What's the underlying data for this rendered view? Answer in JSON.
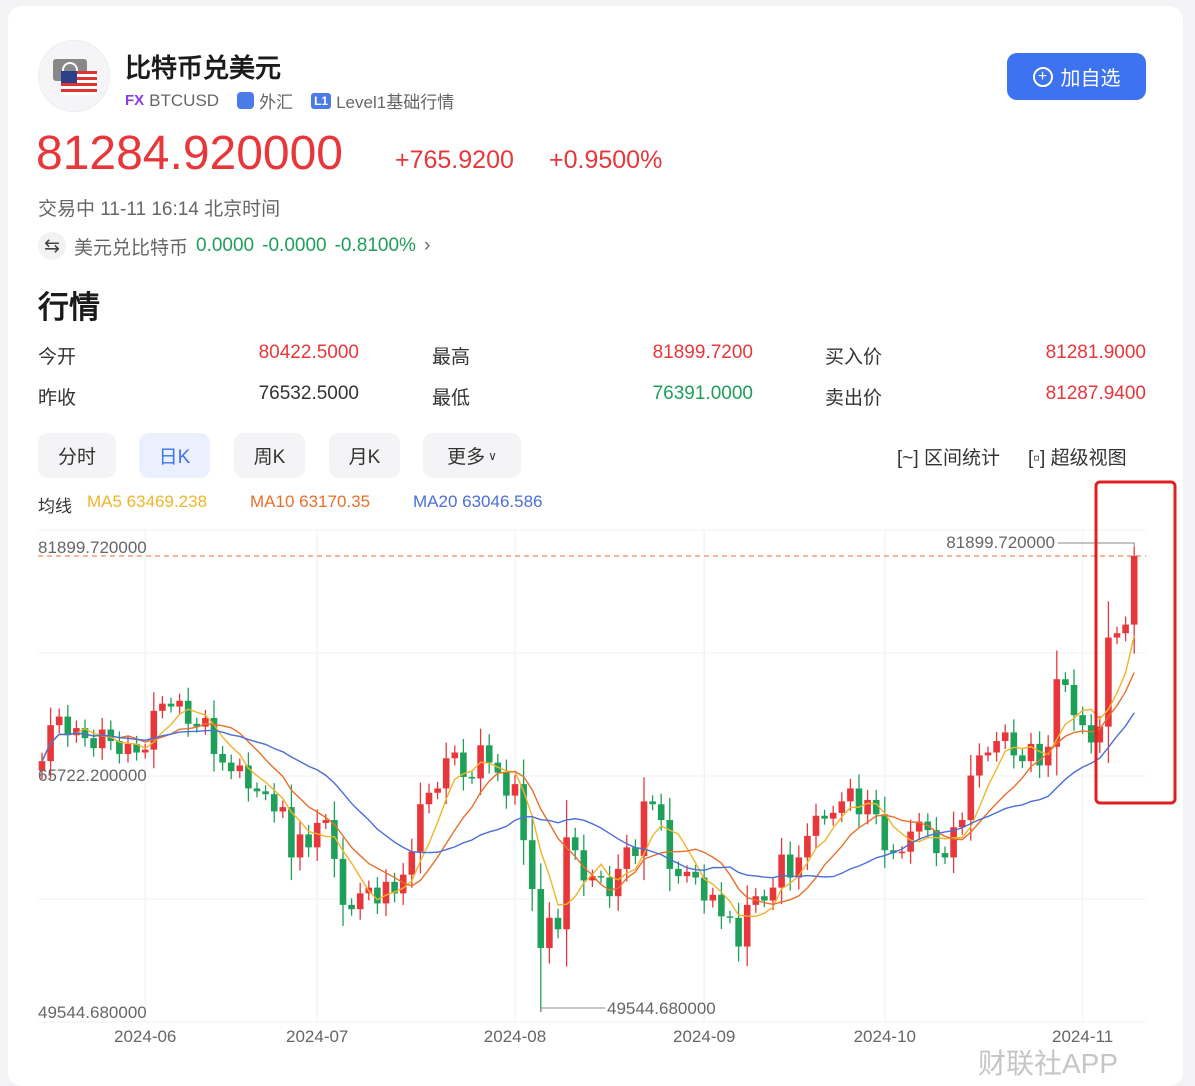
{
  "header": {
    "title": "比特币兑美元",
    "fx_badge": "FX",
    "symbol": "BTCUSD",
    "market": "外汇",
    "level_badge": "L1",
    "level": "Level1基础行情",
    "add_button": "加自选"
  },
  "quote": {
    "price": "81284.920000",
    "change": "+765.9200",
    "change_pct": "+0.9500%",
    "status": "交易中 11-11 16:14 北京时间",
    "reverse": {
      "label": "美元兑比特币",
      "price": "0.0000",
      "change": "-0.0000",
      "pct": "-0.8100%"
    }
  },
  "section_title": "行情",
  "stats": [
    {
      "label": "今开",
      "value": "80422.5000",
      "color": "#e8373a"
    },
    {
      "label": "最高",
      "value": "81899.7200",
      "color": "#e8373a"
    },
    {
      "label": "买入价",
      "value": "81281.9000",
      "color": "#e8373a"
    },
    {
      "label": "昨收",
      "value": "76532.5000",
      "color": "#333333"
    },
    {
      "label": "最低",
      "value": "76391.0000",
      "color": "#1ea05a"
    },
    {
      "label": "卖出价",
      "value": "81287.9400",
      "color": "#e8373a"
    }
  ],
  "tabs": [
    {
      "label": "分时"
    },
    {
      "label": "日K",
      "active": true
    },
    {
      "label": "周K"
    },
    {
      "label": "月K"
    },
    {
      "label": "更多"
    }
  ],
  "tools": {
    "range_stats": "区间统计",
    "super_view": "超级视图"
  },
  "ma_legend": {
    "label": "均线",
    "ma5": "MA5 63469.238",
    "ma10": "MA10 63170.35",
    "ma20": "MA20 63046.586"
  },
  "colors": {
    "up": "#e8373a",
    "down": "#1ea05a",
    "ma5": "#f0b429",
    "ma10": "#e8702a",
    "ma20": "#4a6fd8",
    "accent": "#3d73f0"
  },
  "chart_data": {
    "type": "candlestick",
    "y_labels": [
      "81899.720000",
      "65722.200000",
      "49544.680000"
    ],
    "ylim": [
      49544.68,
      81899.72
    ],
    "max_label": "81899.720000",
    "min_label": "49544.680000",
    "x_ticks": [
      {
        "label": "2024-06",
        "index": 12
      },
      {
        "label": "2024-07",
        "index": 32
      },
      {
        "label": "2024-08",
        "index": 55
      },
      {
        "label": "2024-09",
        "index": 77
      },
      {
        "label": "2024-10",
        "index": 98
      },
      {
        "label": "2024-11",
        "index": 121
      }
    ],
    "max_index": 127,
    "min_index": 58,
    "min_low": 49544.68,
    "max_high": 81899.72,
    "closes": [
      67000,
      69500,
      70100,
      68800,
      69300,
      68600,
      67900,
      69200,
      68400,
      67500,
      68200,
      67600,
      67800,
      70500,
      71000,
      70800,
      71200,
      69600,
      69400,
      70000,
      67500,
      66900,
      66300,
      66700,
      65100,
      64900,
      64700,
      63500,
      63800,
      60300,
      61900,
      61000,
      62700,
      62900,
      60200,
      57000,
      56700,
      57800,
      58200,
      57100,
      58600,
      57800,
      59100,
      60700,
      64000,
      64800,
      65100,
      67200,
      67600,
      65900,
      65800,
      68100,
      66900,
      66200,
      64600,
      65400,
      61500,
      58100,
      54000,
      56100,
      55300,
      61700,
      60800,
      58700,
      59000,
      58900,
      57600,
      59500,
      61000,
      60400,
      64200,
      64000,
      62900,
      59500,
      59000,
      59300,
      58900,
      57300,
      57700,
      56200,
      56100,
      54100,
      57000,
      57600,
      57300,
      58200,
      60500,
      58900,
      60300,
      61800,
      63200,
      63000,
      63400,
      64200,
      65100,
      63300,
      64300,
      63300,
      60800,
      60600,
      60700,
      62100,
      62800,
      62200,
      60600,
      60300,
      62400,
      62900,
      66000,
      67400,
      67600,
      68400,
      69000,
      67400,
      67000,
      68200,
      66700,
      68000,
      72700,
      72300,
      70200,
      69500,
      68300,
      69400,
      75600,
      75900,
      76500,
      81285
    ]
  },
  "watermark": "财联社APP"
}
